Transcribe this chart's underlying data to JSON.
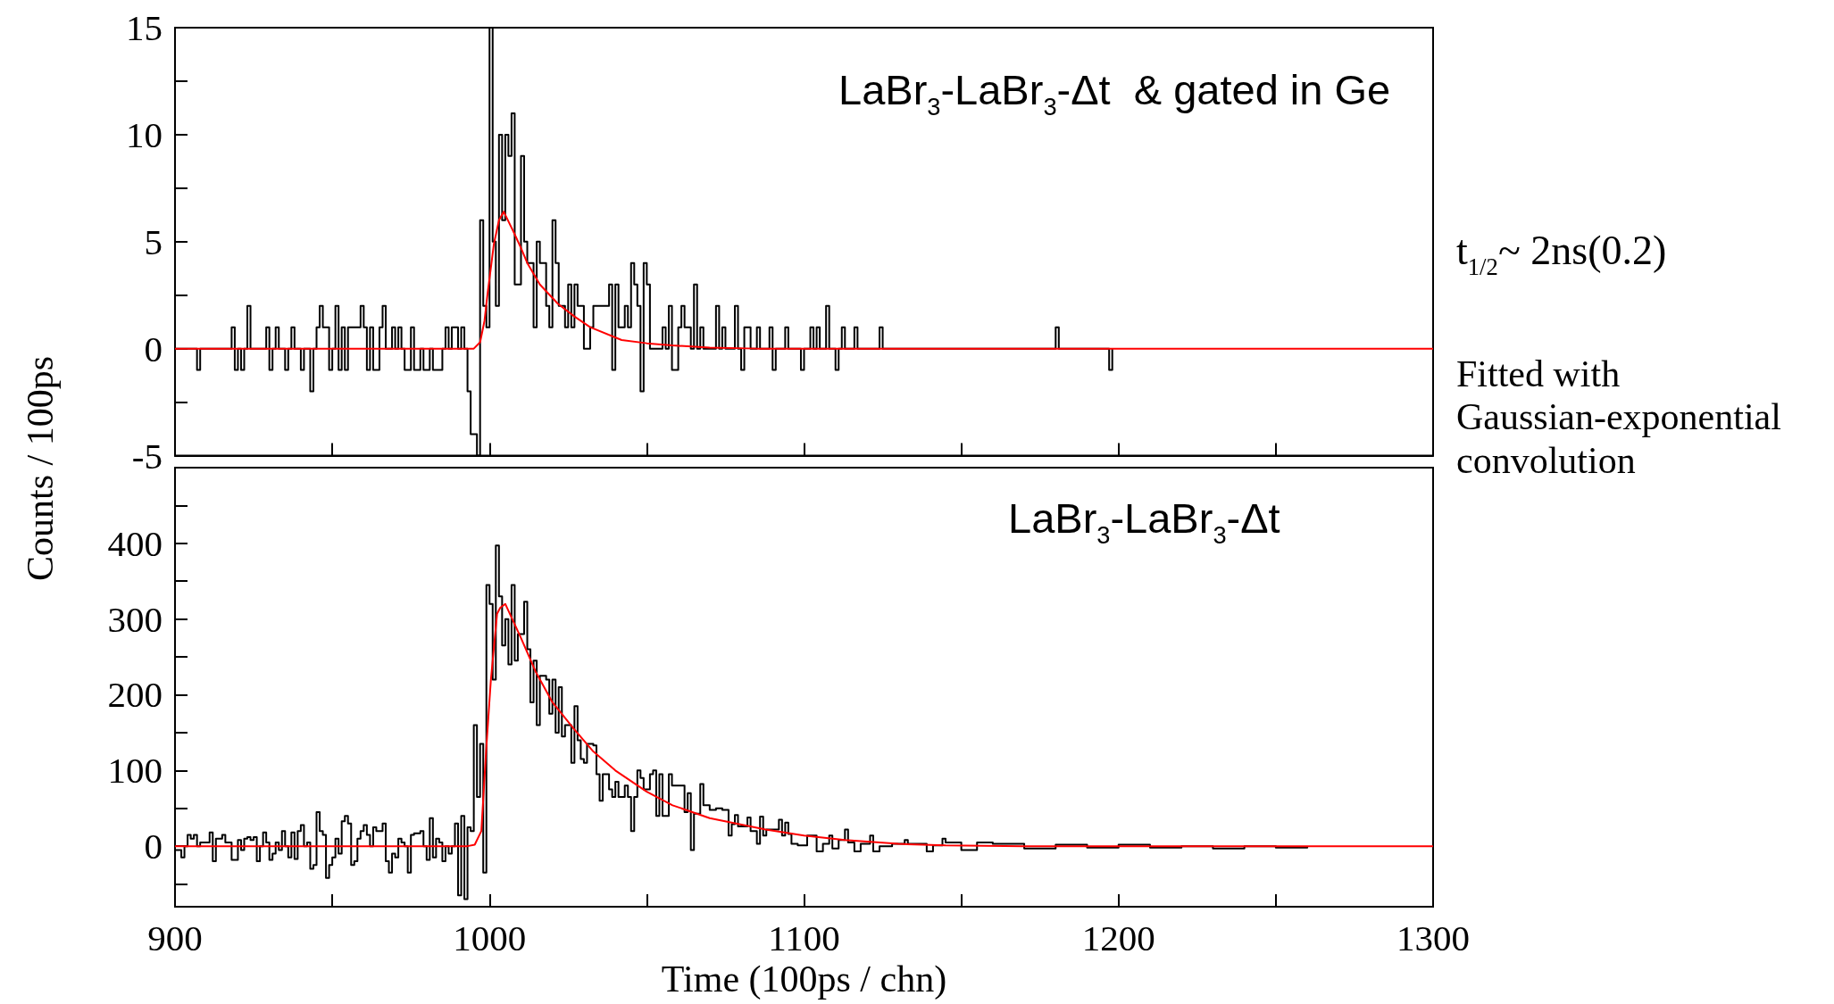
{
  "chart_data": [
    {
      "type": "step",
      "ylabel": "Counts / 100ps",
      "tick_labels": "y",
      "annotations": [
        "LaBr$_{3}$-LaBr$_{3}$-Δt  & gated in Ge",
        "t$_{1/2}$~ 2ns(0.2)",
        "Fitted with Gaussian-exponential convolution"
      ],
      "xlim": [
        900,
        1300
      ],
      "xticks": [
        900,
        {
          "value": 950,
          "label": null
        },
        1000,
        {
          "value": 1050,
          "label": null
        },
        1100,
        {
          "value": 1150,
          "label": null
        },
        1200,
        {
          "value": 1250,
          "label": null
        },
        1300
      ],
      "ylim": [
        -5,
        15
      ],
      "yticks": [
        -5,
        {
          "value": -2.5,
          "label": null
        },
        0,
        {
          "value": 2.5,
          "label": null
        },
        5,
        {
          "value": 7.5,
          "label": null
        },
        10,
        {
          "value": 12.5,
          "label": null
        },
        15
      ],
      "series": [
        {
          "color": "#000000",
          "x": [
            900,
            907,
            908,
            918,
            919,
            920,
            921,
            922,
            923,
            924,
            929,
            930,
            931,
            932,
            933,
            935,
            936,
            937,
            938,
            940,
            941,
            943,
            944,
            945,
            946,
            947,
            949,
            950,
            951,
            952,
            953,
            954,
            955,
            959,
            960,
            961,
            962,
            963,
            965,
            966,
            967,
            969,
            970,
            971,
            972,
            973,
            975,
            976,
            978,
            979,
            981,
            982,
            985,
            986,
            987,
            988,
            990,
            991,
            992,
            993,
            994,
            996,
            997,
            998,
            999,
            1000,
            1001,
            1002,
            1003,
            1004,
            1005,
            1006,
            1007,
            1008,
            1010,
            1011,
            1012,
            1014,
            1015,
            1016,
            1018,
            1019,
            1020,
            1021,
            1022,
            1024,
            1025,
            1026,
            1027,
            1028,
            1030,
            1032,
            1033,
            1038,
            1039,
            1040,
            1041,
            1043,
            1044,
            1045,
            1046,
            1047,
            1048,
            1049,
            1050,
            1051,
            1055,
            1056,
            1057,
            1058,
            1060,
            1061,
            1062,
            1064,
            1065,
            1066,
            1067,
            1068,
            1072,
            1073,
            1074,
            1075,
            1078,
            1079,
            1080,
            1081,
            1083,
            1085,
            1086,
            1089,
            1090,
            1091,
            1094,
            1095,
            1099,
            1100,
            1102,
            1103,
            1104,
            1105,
            1107,
            1108,
            1110,
            1111,
            1112,
            1113,
            1116,
            1117,
            1124,
            1125,
            1180,
            1181,
            1197,
            1198
          ],
          "values": [
            0,
            -1,
            0,
            1,
            -1,
            0,
            -1,
            0,
            2,
            0,
            1,
            -1,
            0,
            1,
            0,
            -1,
            0,
            1,
            0,
            -1,
            0,
            -2,
            0,
            1,
            2,
            1,
            -1,
            0,
            2,
            -1,
            1,
            -1,
            1,
            2,
            1,
            -1,
            1,
            -1,
            1,
            2,
            0,
            1,
            0,
            1,
            0,
            -1,
            1,
            -1,
            0,
            -1,
            0,
            -1,
            0,
            1,
            0,
            1,
            0,
            1,
            0,
            -2,
            -4,
            -5,
            6,
            2,
            1,
            15,
            5,
            2,
            10,
            6,
            10,
            9,
            11,
            3,
            9,
            5,
            4,
            1,
            5,
            4,
            2,
            1,
            6,
            4,
            2,
            1,
            3,
            1,
            3,
            2,
            0,
            1,
            2,
            3,
            -1,
            3,
            1,
            2,
            1,
            4,
            3,
            2,
            -2,
            4,
            3,
            0,
            1,
            0,
            2,
            -1,
            1,
            2,
            1,
            0,
            3,
            0,
            1,
            0,
            2,
            0,
            1,
            0,
            2,
            0,
            -1,
            1,
            0,
            1,
            0,
            1,
            -1,
            0,
            1,
            0,
            -1,
            0,
            1,
            0,
            1,
            0,
            2,
            0,
            -1,
            0,
            1,
            0,
            1,
            0,
            1,
            0,
            1,
            0,
            -1,
            0
          ]
        },
        {
          "type": "line",
          "color": "#ff0000",
          "x": [
            900,
            995,
            997,
            998.4,
            999.4,
            1001.4,
            1003,
            1004.5,
            1007.5,
            1010,
            1012,
            1016,
            1021.7,
            1027,
            1032,
            1042,
            1050,
            1058,
            1070,
            1085,
            1300
          ],
          "values": [
            0,
            0,
            0.3,
            1.3,
            2.6,
            4.9,
            6,
            6.4,
            5.5,
            4.7,
            4,
            3,
            2.1,
            1.5,
            1,
            0.4,
            0.25,
            0.15,
            0.05,
            0,
            0
          ]
        }
      ]
    },
    {
      "type": "step",
      "xlabel": "Time (100ps / chn)",
      "annotations": [
        "LaBr$_{3}$-LaBr$_{3}$-Δt"
      ],
      "xlim": [
        900,
        1300
      ],
      "xticks": [
        900,
        {
          "value": 950,
          "label": null
        },
        1000,
        {
          "value": 1050,
          "label": null
        },
        1100,
        {
          "value": 1150,
          "label": null
        },
        1200,
        {
          "value": 1250,
          "label": null
        },
        1300
      ],
      "ylim": [
        -80,
        500
      ],
      "yticks": [
        {
          "value": -50,
          "label": null
        },
        0,
        {
          "value": 50,
          "label": null
        },
        100,
        {
          "value": 150,
          "label": null
        },
        200,
        {
          "value": 250,
          "label": null
        },
        300,
        {
          "value": 350,
          "label": null
        },
        400,
        {
          "value": 450,
          "label": null
        }
      ],
      "series": [
        {
          "color": "#000000",
          "x": [
            900,
            901,
            902,
            903,
            904,
            905,
            906,
            907,
            908,
            909,
            910,
            911,
            912,
            913,
            914,
            915,
            916,
            917,
            918,
            919,
            920,
            921,
            922,
            923,
            924,
            925,
            926,
            927,
            928,
            929,
            930,
            931,
            932,
            933,
            934,
            935,
            936,
            937,
            938,
            939,
            940,
            941,
            942,
            943,
            944,
            945,
            946,
            947,
            948,
            949,
            950,
            951,
            952,
            953,
            954,
            955,
            956,
            957,
            958,
            959,
            960,
            961,
            962,
            963,
            964,
            965,
            966,
            967,
            968,
            969,
            970,
            971,
            972,
            973,
            974,
            975,
            976,
            977,
            978,
            979,
            980,
            981,
            982,
            983,
            984,
            985,
            986,
            987,
            988,
            989,
            990,
            991,
            992,
            993,
            994,
            995,
            996,
            997,
            998,
            999,
            1000,
            1001,
            1002,
            1003,
            1004,
            1005,
            1006,
            1007,
            1008,
            1009,
            1010,
            1011,
            1012,
            1013,
            1014,
            1015,
            1016,
            1017,
            1018,
            1019,
            1020,
            1021,
            1022,
            1023,
            1024,
            1025,
            1026,
            1027,
            1028,
            1029,
            1030,
            1031,
            1032,
            1033,
            1034,
            1035,
            1036,
            1037,
            1038,
            1039,
            1040,
            1041,
            1042,
            1043,
            1044,
            1045,
            1046,
            1047,
            1048,
            1049,
            1050,
            1051,
            1052,
            1053,
            1054,
            1055,
            1056,
            1057,
            1058,
            1062,
            1063,
            1064,
            1065,
            1067,
            1068,
            1070,
            1072,
            1074,
            1076,
            1077,
            1078,
            1079,
            1082,
            1083,
            1085,
            1086,
            1087,
            1088,
            1092,
            1093,
            1094,
            1095,
            1096,
            1098,
            1101,
            1104,
            1106,
            1108,
            1109,
            1111,
            1113,
            1114,
            1116,
            1118,
            1121,
            1122,
            1124,
            1128,
            1132,
            1133,
            1139,
            1141,
            1144,
            1145,
            1150,
            1155,
            1160,
            1170,
            1180,
            1190,
            1200,
            1210,
            1220,
            1230,
            1240,
            1250,
            1260
          ],
          "values": [
            -5,
            -5,
            -15,
            0,
            15,
            10,
            15,
            0,
            5,
            5,
            5,
            18,
            -20,
            10,
            10,
            15,
            5,
            5,
            -18,
            -18,
            8,
            -5,
            10,
            12,
            8,
            12,
            -20,
            0,
            18,
            5,
            -18,
            -10,
            5,
            -5,
            20,
            0,
            -15,
            18,
            -17,
            20,
            28,
            0,
            5,
            -30,
            -25,
            45,
            20,
            15,
            -42,
            -25,
            -15,
            10,
            -10,
            33,
            40,
            30,
            -25,
            -20,
            10,
            20,
            28,
            15,
            0,
            25,
            20,
            20,
            30,
            -20,
            -35,
            -10,
            -15,
            10,
            5,
            0,
            -35,
            15,
            17,
            17,
            20,
            0,
            -18,
            37,
            -15,
            10,
            5,
            -20,
            0,
            -10,
            0,
            30,
            -65,
            40,
            -70,
            25,
            20,
            160,
            65,
            135,
            -35,
            345,
            320,
            220,
            397,
            330,
            265,
            300,
            240,
            345,
            245,
            280,
            280,
            323,
            260,
            190,
            245,
            160,
            225,
            225,
            220,
            175,
            220,
            150,
            210,
            145,
            160,
            160,
            110,
            185,
            140,
            115,
            110,
            135,
            135,
            133,
            95,
            60,
            95,
            95,
            75,
            65,
            85,
            65,
            65,
            80,
            65,
            20,
            65,
            100,
            90,
            75,
            75,
            95,
            100,
            40,
            95,
            40,
            40,
            95,
            80,
            45,
            70,
            -5,
            43,
            82,
            54,
            48,
            50,
            48,
            14,
            29,
            41,
            26,
            38,
            20,
            3,
            39,
            14,
            22,
            35,
            14,
            31,
            16,
            3,
            1,
            14,
            -7,
            3,
            14,
            -3,
            8,
            22,
            5,
            -7,
            3,
            14,
            -7,
            0,
            3,
            8,
            3,
            -7,
            1,
            10,
            5,
            -5,
            5,
            3,
            -3,
            2,
            -2,
            2,
            -2,
            0,
            -3,
            0,
            -2,
            0
          ]
        },
        {
          "type": "line",
          "color": "#ff0000",
          "x": [
            900,
            993,
            995.3,
            997.4,
            998.9,
            1000.4,
            1002.4,
            1003.4,
            1005,
            1010,
            1014.6,
            1020,
            1026.8,
            1033,
            1040,
            1050,
            1058.2,
            1070,
            1087.8,
            1100,
            1113,
            1130,
            1145,
            1170,
            1300
          ],
          "values": [
            0,
            0,
            2,
            20,
            125,
            218,
            307,
            315,
            320,
            275,
            231,
            190,
            155,
            125,
            100,
            72,
            54,
            37,
            22,
            14,
            8,
            3,
            1,
            0,
            0
          ]
        }
      ]
    }
  ]
}
